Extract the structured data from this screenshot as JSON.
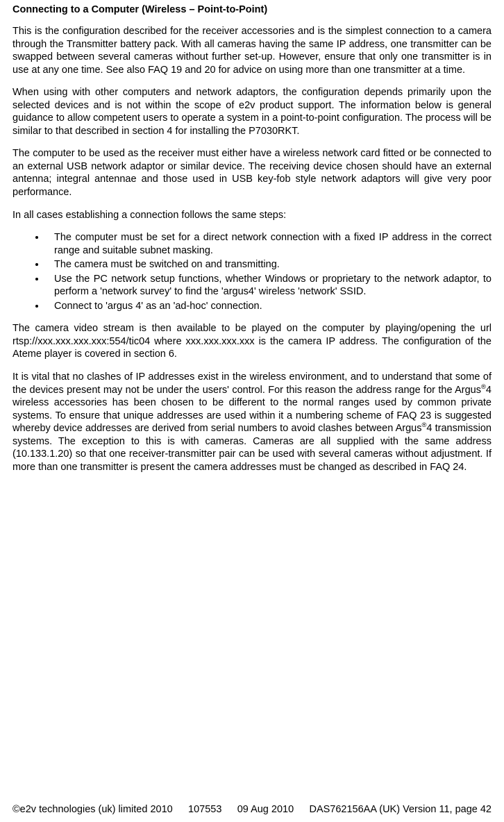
{
  "heading": "Connecting to a Computer (Wireless – Point-to-Point)",
  "p1": "This is the configuration described for the receiver accessories and is the simplest connection to a camera through the Transmitter battery pack. With all cameras having the same IP address, one transmitter can be swapped between several cameras without further set-up. However, ensure that only one transmitter is in use at any one time. See also FAQ 19 and 20 for advice on using more than one transmitter at a time.",
  "p2": "When using with other computers and network adaptors, the configuration depends primarily upon the selected devices and is not within the scope of e2v product support. The information below is general guidance to allow competent users to operate a system in a point-to-point configuration. The process will be similar to that described in section 4 for installing the P7030RKT.",
  "p3": "The computer to be used as the receiver must either have a wireless network card fitted or be connected to an external USB network adaptor or similar device. The receiving device chosen should have an external antenna; integral antennae and those used in USB key-fob style network adaptors will give very poor performance.",
  "p4": "In all cases establishing a connection follows the same steps:",
  "bullets": [
    "The computer must be set for a direct network connection with a fixed IP address in the correct range and suitable subnet masking.",
    "The camera must be switched on and transmitting.",
    "Use the PC network setup functions, whether Windows or proprietary to the network adaptor, to perform a 'network survey' to find the 'argus4' wireless 'network' SSID.",
    "Connect to 'argus 4' as an 'ad-hoc' connection."
  ],
  "p5": "The camera video stream is then available to be played on the computer by playing/opening the url rtsp://xxx.xxx.xxx.xxx:554/tic04 where xxx.xxx.xxx.xxx is the camera IP address. The configuration of the Ateme player is covered in section 6.",
  "p6a": "It is vital that no clashes of IP addresses exist in the wireless environment, and to understand that some of the devices present may not be under the users' control. For this reason the address range for the Argus",
  "p6b": "4 wireless accessories has been chosen to be different to the normal ranges used by common private systems. To ensure that unique addresses are used within it a numbering scheme of FAQ 23 is suggested whereby device addresses are derived from serial numbers to avoid clashes between Argus",
  "p6c": "4 transmission systems. The exception to this is with cameras. Cameras are all supplied with the same address (10.133.1.20) so that one receiver-transmitter pair can be used with several cameras without adjustment. If more than one transmitter is present the camera addresses must be changed as described in FAQ 24.",
  "reg": "®",
  "footer": {
    "copyright": "©e2v technologies (uk) limited 2010",
    "docnum": "107553",
    "date": "09 Aug 2010",
    "pageref": "DAS762156AA (UK) Version 11, page 42"
  }
}
